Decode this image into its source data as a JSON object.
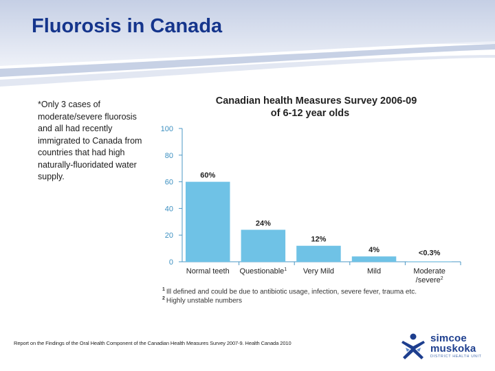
{
  "slide": {
    "title": "Fluorosis in Canada",
    "note": "*Only 3 cases of moderate/severe fluorosis and all had recently immigrated to Canada from countries that had high naturally-fluoridated water supply.",
    "source": "Report on the Findings of the Oral Health Component of the Canadian Health Measures Survey 2007-9. Health Canada 2010"
  },
  "chart_data": {
    "type": "bar",
    "title_line1": "Canadian health Measures Survey 2006-09",
    "title_line2": "of 6-12 year olds",
    "categories": [
      "Normal teeth",
      "Questionable",
      "Very Mild",
      "Mild",
      "Moderate /severe"
    ],
    "category_labels": [
      {
        "line1": "Normal teeth",
        "sup": ""
      },
      {
        "line1": "Questionable",
        "sup": "1"
      },
      {
        "line1": "Very Mild",
        "sup": ""
      },
      {
        "line1": "Mild",
        "sup": ""
      },
      {
        "line1": "Moderate",
        "line2": "/severe",
        "sup": "2"
      }
    ],
    "values": [
      60,
      24,
      12,
      4,
      0.3
    ],
    "data_labels": [
      "60%",
      "24%",
      "12%",
      "4%",
      "<0.3%"
    ],
    "yticks": [
      0,
      20,
      40,
      60,
      80,
      100
    ],
    "ylim": [
      0,
      100
    ],
    "bar_color": "#6fc2e6",
    "axis_color": "#4a97c4",
    "grid": false
  },
  "footnotes": [
    {
      "marker": "1",
      "text": "Ill defined and could be due to antibiotic usage, infection, severe fever, trauma etc."
    },
    {
      "marker": "2",
      "text": "Highly unstable numbers"
    }
  ],
  "logo": {
    "word1": "simcoe",
    "word2": "muskoka",
    "sub": "DISTRICT HEALTH UNIT",
    "icon": "figure-logo-icon",
    "color": "#1d3e8e"
  },
  "colors": {
    "title": "#15358c",
    "band_top": "#c7d1e6",
    "band_wave": "#b7c3de"
  }
}
